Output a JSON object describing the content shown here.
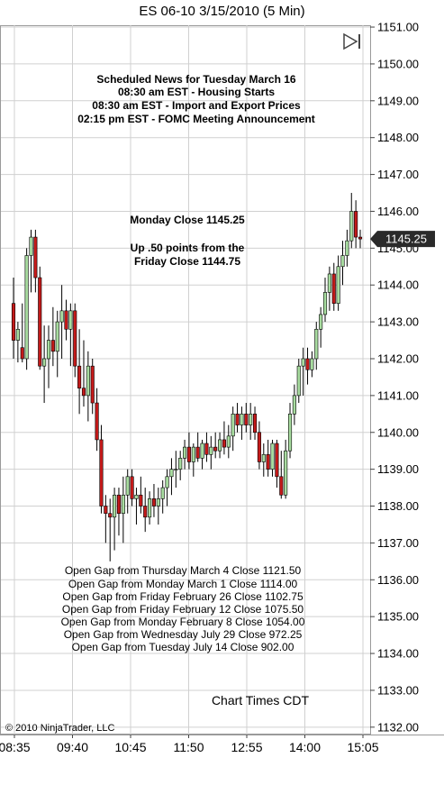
{
  "chart_title": "ES 06-10  3/15/2010 (5 Min)",
  "news": {
    "title": "Scheduled News for Tuesday March 16",
    "items": [
      "08:30 am EST - Housing Starts",
      "08:30 am EST - Import and Export Prices",
      "02:15 pm EST - FOMC Meeting Announcement"
    ]
  },
  "close_note": {
    "line1": "Monday Close 1145.25",
    "line2": "Up .50 points from the",
    "line3": "Friday Close 1144.75"
  },
  "gaps": [
    "Open Gap from Thursday March 4 Close 1121.50",
    "Open Gap from Monday March 1 Close 1114.00",
    "Open Gap from Friday February 26 Close 1102.75",
    "Open Gap from Friday February 12 Close 1075.50",
    "Open Gap from Monday February 8 Close 1054.00",
    "Open Gap from Wednesday July 29 Close 972.25",
    "Open Gap from Tuesday July 14 Close 902.00"
  ],
  "chart_times": "Chart Times CDT",
  "copyright": "© 2010 NinjaTrader, LLC",
  "colors": {
    "up": "#a8dca0",
    "down": "#c41a1a",
    "wick": "#000000",
    "grid": "#d0d0d0",
    "label_bg": "#2a2a2a",
    "label_fg": "#ffffff"
  },
  "icons": [
    "play-bar-icon"
  ],
  "chart_data": {
    "type": "candlestick",
    "title": "ES 06-10  3/15/2010 (5 Min)",
    "y_ticks": [
      "1132.00",
      "1133.00",
      "1134.00",
      "1135.00",
      "1136.00",
      "1137.00",
      "1138.00",
      "1139.00",
      "1140.00",
      "1141.00",
      "1142.00",
      "1143.00",
      "1144.00",
      "1145.00",
      "1146.00",
      "1147.00",
      "1148.00",
      "1149.00",
      "1150.00",
      "1151.00"
    ],
    "ylim": [
      1131.8,
      1151.05
    ],
    "x_ticks": [
      "08:35",
      "09:40",
      "10:45",
      "11:50",
      "12:55",
      "14:00",
      "15:05"
    ],
    "last_price": "1145.25",
    "grid": true,
    "candles": [
      {
        "o": 1143.5,
        "h": 1144.2,
        "l": 1142.0,
        "c": 1142.5
      },
      {
        "o": 1142.5,
        "h": 1143.0,
        "l": 1141.9,
        "c": 1142.8
      },
      {
        "o": 1142.3,
        "h": 1143.5,
        "l": 1141.9,
        "c": 1142.0
      },
      {
        "o": 1142.0,
        "h": 1145.0,
        "l": 1141.7,
        "c": 1144.8
      },
      {
        "o": 1144.8,
        "h": 1145.5,
        "l": 1143.8,
        "c": 1145.3
      },
      {
        "o": 1145.3,
        "h": 1145.5,
        "l": 1143.8,
        "c": 1144.2
      },
      {
        "o": 1144.2,
        "h": 1144.5,
        "l": 1141.7,
        "c": 1141.8
      },
      {
        "o": 1141.8,
        "h": 1142.9,
        "l": 1140.8,
        "c": 1142.0
      },
      {
        "o": 1142.0,
        "h": 1142.9,
        "l": 1141.2,
        "c": 1142.5
      },
      {
        "o": 1142.5,
        "h": 1143.4,
        "l": 1141.8,
        "c": 1142.2
      },
      {
        "o": 1142.2,
        "h": 1143.3,
        "l": 1141.5,
        "c": 1143.0
      },
      {
        "o": 1143.0,
        "h": 1144.0,
        "l": 1142.0,
        "c": 1143.3
      },
      {
        "o": 1143.3,
        "h": 1143.6,
        "l": 1142.5,
        "c": 1142.8
      },
      {
        "o": 1142.8,
        "h": 1143.5,
        "l": 1141.8,
        "c": 1143.3
      },
      {
        "o": 1143.3,
        "h": 1143.5,
        "l": 1141.5,
        "c": 1141.8
      },
      {
        "o": 1141.8,
        "h": 1142.8,
        "l": 1140.5,
        "c": 1141.2
      },
      {
        "o": 1141.2,
        "h": 1142.5,
        "l": 1140.7,
        "c": 1141.0
      },
      {
        "o": 1141.0,
        "h": 1142.2,
        "l": 1140.3,
        "c": 1141.8
      },
      {
        "o": 1141.8,
        "h": 1142.0,
        "l": 1140.5,
        "c": 1140.8
      },
      {
        "o": 1140.8,
        "h": 1141.2,
        "l": 1139.5,
        "c": 1139.8
      },
      {
        "o": 1139.8,
        "h": 1140.2,
        "l": 1137.8,
        "c": 1138.0
      },
      {
        "o": 1138.0,
        "h": 1138.3,
        "l": 1137.0,
        "c": 1137.8
      },
      {
        "o": 1137.8,
        "h": 1138.2,
        "l": 1136.5,
        "c": 1137.7
      },
      {
        "o": 1137.7,
        "h": 1138.5,
        "l": 1136.8,
        "c": 1138.3
      },
      {
        "o": 1138.3,
        "h": 1138.5,
        "l": 1137.2,
        "c": 1137.8
      },
      {
        "o": 1137.8,
        "h": 1138.8,
        "l": 1137.0,
        "c": 1138.3
      },
      {
        "o": 1138.3,
        "h": 1139.0,
        "l": 1137.8,
        "c": 1138.8
      },
      {
        "o": 1138.8,
        "h": 1139.0,
        "l": 1138.0,
        "c": 1138.2
      },
      {
        "o": 1138.2,
        "h": 1138.5,
        "l": 1137.5,
        "c": 1138.3
      },
      {
        "o": 1138.3,
        "h": 1138.8,
        "l": 1137.8,
        "c": 1138.0
      },
      {
        "o": 1138.0,
        "h": 1138.5,
        "l": 1137.3,
        "c": 1137.7
      },
      {
        "o": 1137.7,
        "h": 1138.4,
        "l": 1137.5,
        "c": 1138.2
      },
      {
        "o": 1138.2,
        "h": 1138.6,
        "l": 1137.7,
        "c": 1138.0
      },
      {
        "o": 1138.0,
        "h": 1138.5,
        "l": 1137.5,
        "c": 1138.2
      },
      {
        "o": 1138.2,
        "h": 1138.7,
        "l": 1137.8,
        "c": 1138.5
      },
      {
        "o": 1138.5,
        "h": 1139.0,
        "l": 1138.0,
        "c": 1138.8
      },
      {
        "o": 1138.8,
        "h": 1139.3,
        "l": 1138.3,
        "c": 1139.0
      },
      {
        "o": 1139.0,
        "h": 1139.5,
        "l": 1138.5,
        "c": 1139.0
      },
      {
        "o": 1139.0,
        "h": 1139.5,
        "l": 1138.7,
        "c": 1139.3
      },
      {
        "o": 1139.3,
        "h": 1139.8,
        "l": 1139.0,
        "c": 1139.6
      },
      {
        "o": 1139.6,
        "h": 1140.0,
        "l": 1139.0,
        "c": 1139.2
      },
      {
        "o": 1139.2,
        "h": 1139.7,
        "l": 1138.8,
        "c": 1139.6
      },
      {
        "o": 1139.6,
        "h": 1140.0,
        "l": 1139.2,
        "c": 1139.3
      },
      {
        "o": 1139.3,
        "h": 1139.8,
        "l": 1139.0,
        "c": 1139.7
      },
      {
        "o": 1139.7,
        "h": 1140.0,
        "l": 1139.2,
        "c": 1139.4
      },
      {
        "o": 1139.4,
        "h": 1139.9,
        "l": 1139.0,
        "c": 1139.6
      },
      {
        "o": 1139.6,
        "h": 1140.0,
        "l": 1139.3,
        "c": 1139.5
      },
      {
        "o": 1139.5,
        "h": 1140.0,
        "l": 1139.3,
        "c": 1139.8
      },
      {
        "o": 1139.8,
        "h": 1140.3,
        "l": 1139.4,
        "c": 1139.6
      },
      {
        "o": 1139.6,
        "h": 1140.2,
        "l": 1139.3,
        "c": 1139.9
      },
      {
        "o": 1139.9,
        "h": 1140.7,
        "l": 1139.5,
        "c": 1140.5
      },
      {
        "o": 1140.5,
        "h": 1140.8,
        "l": 1140.0,
        "c": 1140.2
      },
      {
        "o": 1140.2,
        "h": 1140.7,
        "l": 1139.8,
        "c": 1140.5
      },
      {
        "o": 1140.5,
        "h": 1140.8,
        "l": 1140.0,
        "c": 1140.2
      },
      {
        "o": 1140.2,
        "h": 1140.8,
        "l": 1139.8,
        "c": 1140.5
      },
      {
        "o": 1140.5,
        "h": 1140.7,
        "l": 1139.8,
        "c": 1140.0
      },
      {
        "o": 1140.0,
        "h": 1140.3,
        "l": 1139.0,
        "c": 1139.2
      },
      {
        "o": 1139.2,
        "h": 1139.7,
        "l": 1138.8,
        "c": 1139.4
      },
      {
        "o": 1139.4,
        "h": 1139.8,
        "l": 1138.8,
        "c": 1139.0
      },
      {
        "o": 1139.0,
        "h": 1139.8,
        "l": 1138.8,
        "c": 1139.7
      },
      {
        "o": 1139.7,
        "h": 1139.8,
        "l": 1138.5,
        "c": 1138.8
      },
      {
        "o": 1138.8,
        "h": 1139.5,
        "l": 1138.2,
        "c": 1138.3
      },
      {
        "o": 1138.3,
        "h": 1139.8,
        "l": 1138.2,
        "c": 1139.5
      },
      {
        "o": 1139.5,
        "h": 1140.8,
        "l": 1139.3,
        "c": 1140.5
      },
      {
        "o": 1140.5,
        "h": 1141.3,
        "l": 1140.2,
        "c": 1141.0
      },
      {
        "o": 1141.0,
        "h": 1142.0,
        "l": 1140.8,
        "c": 1141.8
      },
      {
        "o": 1141.8,
        "h": 1142.3,
        "l": 1141.0,
        "c": 1142.0
      },
      {
        "o": 1142.0,
        "h": 1142.3,
        "l": 1141.3,
        "c": 1141.7
      },
      {
        "o": 1141.7,
        "h": 1142.2,
        "l": 1141.5,
        "c": 1142.0
      },
      {
        "o": 1142.0,
        "h": 1143.0,
        "l": 1141.7,
        "c": 1142.8
      },
      {
        "o": 1142.8,
        "h": 1143.4,
        "l": 1142.3,
        "c": 1143.2
      },
      {
        "o": 1143.2,
        "h": 1144.2,
        "l": 1143.0,
        "c": 1143.8
      },
      {
        "o": 1143.8,
        "h": 1144.5,
        "l": 1143.3,
        "c": 1144.3
      },
      {
        "o": 1144.3,
        "h": 1144.6,
        "l": 1143.3,
        "c": 1143.5
      },
      {
        "o": 1143.5,
        "h": 1144.8,
        "l": 1143.3,
        "c": 1144.5
      },
      {
        "o": 1144.5,
        "h": 1145.2,
        "l": 1144.0,
        "c": 1144.8
      },
      {
        "o": 1144.8,
        "h": 1145.5,
        "l": 1144.5,
        "c": 1145.2
      },
      {
        "o": 1145.2,
        "h": 1146.5,
        "l": 1145.0,
        "c": 1146.0
      },
      {
        "o": 1146.0,
        "h": 1146.3,
        "l": 1145.0,
        "c": 1145.3
      },
      {
        "o": 1145.3,
        "h": 1145.5,
        "l": 1145.0,
        "c": 1145.25
      }
    ]
  }
}
